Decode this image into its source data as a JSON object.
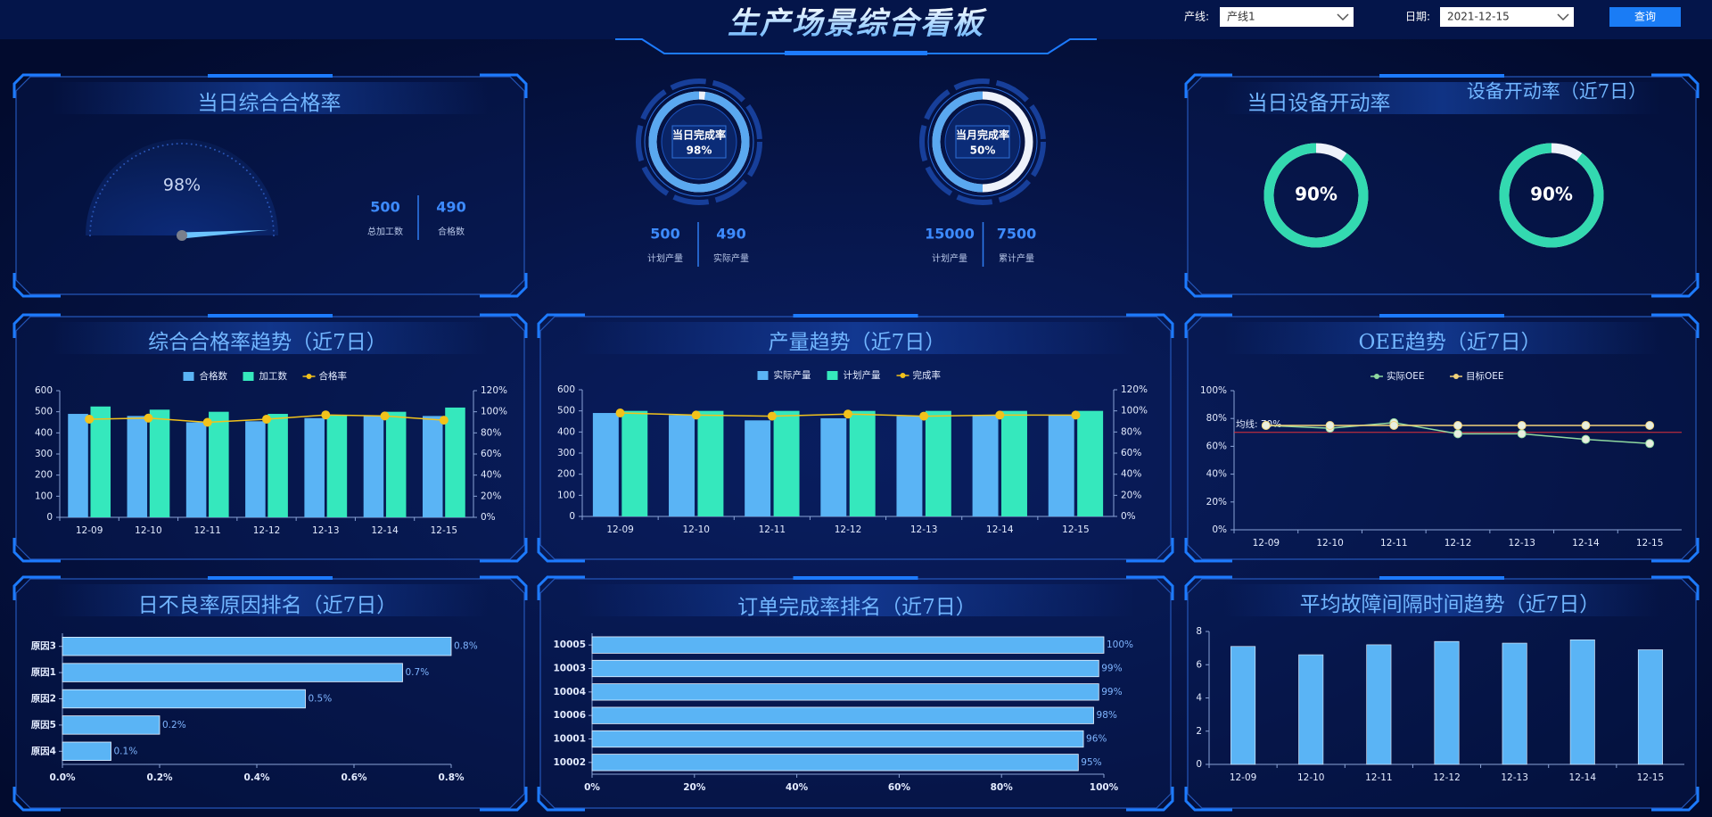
{
  "header": {
    "title": "生产场景综合看板",
    "filters": [
      {
        "label": "产线:",
        "value": "产线1"
      },
      {
        "label": "日期:",
        "value": "2021-12-15"
      }
    ],
    "button": "查询"
  },
  "chart_data": [
    {
      "type": "gauge",
      "title": "当日综合合格率",
      "values": [
        98
      ],
      "value_labels": [
        "98%"
      ],
      "ylim": [
        0,
        100
      ],
      "color": "#6cc4ff",
      "stats": [
        {
          "value": 500,
          "label": "总加工数"
        },
        {
          "value": 490,
          "label": "合格数"
        }
      ]
    },
    {
      "type": "ring",
      "label": "当日完成率",
      "values": [
        98
      ],
      "value_labels": [
        "98%"
      ],
      "ylim": [
        0,
        100
      ],
      "color": "#5aa8f0",
      "stats": [
        {
          "value": 500,
          "label": "计划产量"
        },
        {
          "value": 490,
          "label": "实际产量"
        }
      ]
    },
    {
      "type": "ring",
      "label": "当月完成率",
      "values": [
        50
      ],
      "value_labels": [
        "50%"
      ],
      "ylim": [
        0,
        100
      ],
      "color": "#5aa8f0",
      "stats": [
        {
          "value": 15000,
          "label": "计划产量"
        },
        {
          "value": 7500,
          "label": "累计产量"
        }
      ]
    },
    {
      "type": "ring",
      "title": "当日设备开动率",
      "values": [
        90
      ],
      "value_labels": [
        "90%"
      ],
      "ylim": [
        0,
        100
      ],
      "color": "#33d9b0"
    },
    {
      "type": "ring",
      "title": "设备开动率（近7日）",
      "values": [
        90
      ],
      "value_labels": [
        "90%"
      ],
      "ylim": [
        0,
        100
      ],
      "color": "#33d9b0"
    },
    {
      "type": "bar-line",
      "title": "综合合格率趋势（近7日）",
      "categories": [
        "12-09",
        "12-10",
        "12-11",
        "12-12",
        "12-13",
        "12-14",
        "12-15"
      ],
      "series": [
        {
          "name": "合格数",
          "type": "bar",
          "color": "#5ab4f5",
          "values": [
            490,
            480,
            450,
            455,
            470,
            480,
            480
          ]
        },
        {
          "name": "加工数",
          "type": "bar",
          "color": "#35e8bd",
          "values": [
            525,
            510,
            500,
            490,
            485,
            500,
            520
          ]
        },
        {
          "name": "合格率",
          "type": "line",
          "axis": "y2",
          "color": "#f2c21b",
          "values": [
            93,
            94,
            90,
            93,
            97,
            96,
            92
          ]
        }
      ],
      "ylim": [
        0,
        600
      ],
      "yticks": [
        0,
        100,
        200,
        300,
        400,
        500,
        600
      ],
      "y2lim": [
        0,
        120
      ],
      "y2ticks": [
        {
          "value": 0,
          "label": "0%"
        },
        {
          "value": 20,
          "label": "20%"
        },
        {
          "value": 40,
          "label": "40%"
        },
        {
          "value": 60,
          "label": "60%"
        },
        {
          "value": 80,
          "label": "80%"
        },
        {
          "value": 100,
          "label": "100%"
        },
        {
          "value": 120,
          "label": "120%"
        }
      ]
    },
    {
      "type": "bar-line",
      "title": "产量趋势（近7日）",
      "categories": [
        "12-09",
        "12-10",
        "12-11",
        "12-12",
        "12-13",
        "12-14",
        "12-15"
      ],
      "series": [
        {
          "name": "实际产量",
          "type": "bar",
          "color": "#5ab4f5",
          "values": [
            490,
            480,
            455,
            465,
            475,
            480,
            480
          ]
        },
        {
          "name": "计划产量",
          "type": "bar",
          "color": "#35e8bd",
          "values": [
            500,
            500,
            500,
            500,
            500,
            500,
            500
          ]
        },
        {
          "name": "完成率",
          "type": "line",
          "axis": "y2",
          "color": "#f2c21b",
          "values": [
            98,
            96,
            95,
            97,
            95,
            96,
            96
          ]
        }
      ],
      "ylim": [
        0,
        600
      ],
      "yticks": [
        0,
        100,
        200,
        300,
        400,
        500,
        600
      ],
      "y2lim": [
        0,
        120
      ],
      "y2ticks": [
        {
          "value": 0,
          "label": "0%"
        },
        {
          "value": 20,
          "label": "20%"
        },
        {
          "value": 40,
          "label": "40%"
        },
        {
          "value": 60,
          "label": "60%"
        },
        {
          "value": 80,
          "label": "80%"
        },
        {
          "value": 100,
          "label": "100%"
        },
        {
          "value": 120,
          "label": "120%"
        }
      ]
    },
    {
      "type": "line",
      "title": "OEE趋势（近7日）",
      "categories": [
        "12-09",
        "12-10",
        "12-11",
        "12-12",
        "12-13",
        "12-14",
        "12-15"
      ],
      "series": [
        {
          "name": "实际OEE",
          "color": "#8fd9a0",
          "values": [
            75,
            73,
            77,
            69,
            69,
            65,
            62
          ]
        },
        {
          "name": "目标OEE",
          "color": "#f2d27a",
          "values": [
            75,
            75,
            75,
            75,
            75,
            75,
            75
          ]
        }
      ],
      "mark_line": {
        "value": 70,
        "label": "均线: 70%",
        "color": "#e0303a"
      },
      "ylim": [
        0,
        100
      ],
      "yticks": [
        {
          "value": 0,
          "label": "0%"
        },
        {
          "value": 20,
          "label": "20%"
        },
        {
          "value": 40,
          "label": "40%"
        },
        {
          "value": 60,
          "label": "60%"
        },
        {
          "value": 80,
          "label": "80%"
        },
        {
          "value": 100,
          "label": "100%"
        }
      ]
    },
    {
      "type": "hbar",
      "title": "日不良率原因排名（近7日）",
      "categories": [
        "原因3",
        "原因1",
        "原因2",
        "原因5",
        "原因4"
      ],
      "values": [
        0.8,
        0.7,
        0.5,
        0.2,
        0.1
      ],
      "value_labels": [
        "0.8%",
        "0.7%",
        "0.5%",
        "0.2%",
        "0.1%"
      ],
      "color": "#5ab4f5",
      "xlim": [
        0,
        0.8
      ],
      "xticks": [
        {
          "value": 0,
          "label": "0.0%"
        },
        {
          "value": 0.2,
          "label": "0.2%"
        },
        {
          "value": 0.4,
          "label": "0.4%"
        },
        {
          "value": 0.6,
          "label": "0.6%"
        },
        {
          "value": 0.8,
          "label": "0.8%"
        }
      ]
    },
    {
      "type": "hbar",
      "title": "订单完成率排名（近7日）",
      "categories": [
        "10005",
        "10003",
        "10004",
        "10006",
        "10001",
        "10002"
      ],
      "values": [
        100,
        99,
        99,
        98,
        96,
        95
      ],
      "value_labels": [
        "100%",
        "99%",
        "99%",
        "98%",
        "96%",
        "95%"
      ],
      "color": "#5ab4f5",
      "xlim": [
        0,
        100
      ],
      "xticks": [
        {
          "value": 0,
          "label": "0%"
        },
        {
          "value": 20,
          "label": "20%"
        },
        {
          "value": 40,
          "label": "40%"
        },
        {
          "value": 60,
          "label": "60%"
        },
        {
          "value": 80,
          "label": "80%"
        },
        {
          "value": 100,
          "label": "100%"
        }
      ]
    },
    {
      "type": "bar",
      "title": "平均故障间隔时间趋势（近7日）",
      "categories": [
        "12-09",
        "12-10",
        "12-11",
        "12-12",
        "12-13",
        "12-14",
        "12-15"
      ],
      "values": [
        7.1,
        6.6,
        7.2,
        7.4,
        7.3,
        7.5,
        6.9
      ],
      "color": "#5ab4f5",
      "ylim": [
        0,
        8
      ],
      "yticks": [
        0,
        2,
        4,
        6,
        8
      ]
    }
  ]
}
